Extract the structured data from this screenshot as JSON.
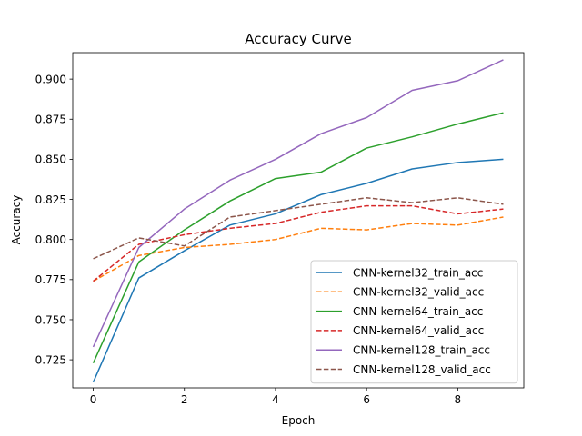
{
  "chart_data": {
    "type": "line",
    "title": "Accuracy Curve",
    "xlabel": "Epoch",
    "ylabel": "Accuracy",
    "xlim": [
      -0.45,
      9.45
    ],
    "ylim": [
      0.7075,
      0.9165
    ],
    "x": [
      0,
      1,
      2,
      3,
      4,
      5,
      6,
      7,
      8,
      9
    ],
    "xticks": [
      0,
      2,
      4,
      6,
      8
    ],
    "xtick_labels": [
      "0",
      "2",
      "4",
      "6",
      "8"
    ],
    "yticks": [
      0.725,
      0.75,
      0.775,
      0.8,
      0.825,
      0.85,
      0.875,
      0.9
    ],
    "ytick_labels": [
      "0.725",
      "0.750",
      "0.775",
      "0.800",
      "0.825",
      "0.850",
      "0.875",
      "0.900"
    ],
    "grid": false,
    "legend_position": "lower-right",
    "series": [
      {
        "name": "CNN-kernel32_train_acc",
        "color": "#1f77b4",
        "dashed": false,
        "values": [
          0.711,
          0.776,
          0.793,
          0.809,
          0.816,
          0.828,
          0.835,
          0.844,
          0.848,
          0.85
        ]
      },
      {
        "name": "CNN-kernel32_valid_acc",
        "color": "#ff7f0e",
        "dashed": true,
        "values": [
          0.774,
          0.79,
          0.795,
          0.797,
          0.8,
          0.807,
          0.806,
          0.81,
          0.809,
          0.814
        ]
      },
      {
        "name": "CNN-kernel64_train_acc",
        "color": "#2ca02c",
        "dashed": false,
        "values": [
          0.723,
          0.786,
          0.806,
          0.824,
          0.838,
          0.842,
          0.857,
          0.864,
          0.872,
          0.879
        ]
      },
      {
        "name": "CNN-kernel64_valid_acc",
        "color": "#d62728",
        "dashed": true,
        "values": [
          0.774,
          0.797,
          0.803,
          0.807,
          0.81,
          0.817,
          0.821,
          0.821,
          0.816,
          0.819
        ]
      },
      {
        "name": "CNN-kernel128_train_acc",
        "color": "#9467bd",
        "dashed": false,
        "values": [
          0.733,
          0.795,
          0.819,
          0.837,
          0.85,
          0.866,
          0.876,
          0.893,
          0.899,
          0.912
        ]
      },
      {
        "name": "CNN-kernel128_valid_acc",
        "color": "#8c564b",
        "dashed": true,
        "values": [
          0.788,
          0.801,
          0.796,
          0.814,
          0.818,
          0.822,
          0.826,
          0.823,
          0.826,
          0.822
        ]
      }
    ]
  }
}
